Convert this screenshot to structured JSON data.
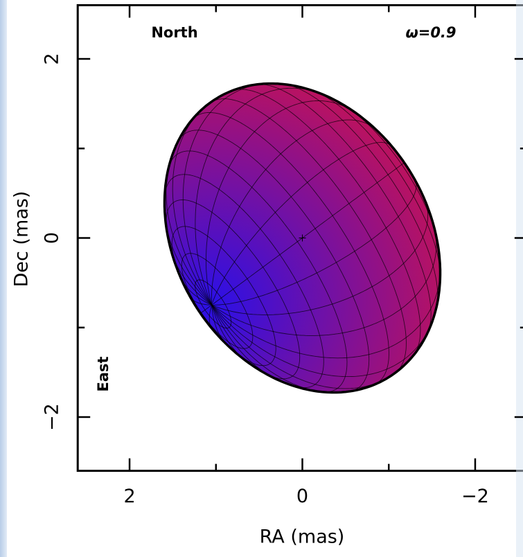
{
  "chart_data": {
    "type": "spheroid",
    "xlabel": "RA (mas)",
    "ylabel": "Dec (mas)",
    "xlim": [
      2.6,
      -2.6
    ],
    "ylim": [
      -2.6,
      2.6
    ],
    "xticks": [
      2,
      0,
      {
        "value": -2,
        "label": "−2"
      }
    ],
    "yticks": [
      {
        "value": -2,
        "label": "−2"
      },
      0,
      2
    ],
    "xminor_ticks": [
      1,
      -1
    ],
    "yminor_ticks": [
      -1,
      1
    ],
    "annotations": {
      "north": "North",
      "east": "East",
      "omega": "ω=0.9"
    },
    "center": [
      0,
      0
    ],
    "star": {
      "equatorial_radius": 1.85,
      "polar_radius": 1.38,
      "inclination": 69,
      "pole_position_angle": 125.5,
      "grid_longitude_step": 15,
      "grid_latitude_step": 10,
      "pole_color": "#2a10e8",
      "limb_color": "#e0123c"
    }
  }
}
